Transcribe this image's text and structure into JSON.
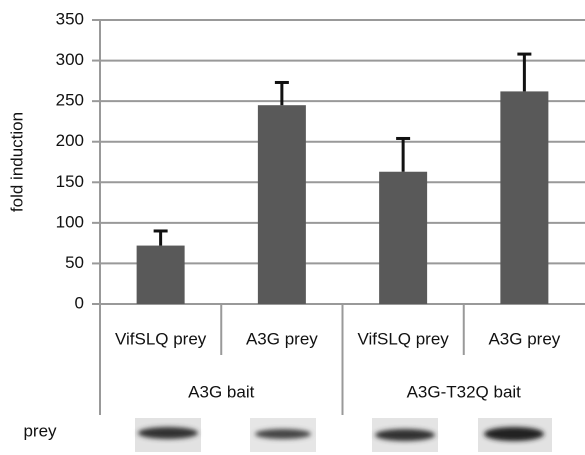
{
  "chart_data": {
    "type": "bar",
    "ylabel": "fold induction",
    "categories": [
      "VifSLQ prey",
      "A3G prey",
      "VifSLQ prey",
      "A3G prey"
    ],
    "groups": [
      "A3G bait",
      "A3G-T32Q bait"
    ],
    "values": [
      72,
      245,
      163,
      262
    ],
    "errors": [
      18,
      28,
      41,
      46
    ],
    "color": "#595959",
    "ylim": [
      0,
      350
    ],
    "yticks": [
      0,
      50,
      100,
      150,
      200,
      250,
      300,
      350
    ],
    "grid": true
  },
  "blot_row": {
    "label": "prey"
  }
}
